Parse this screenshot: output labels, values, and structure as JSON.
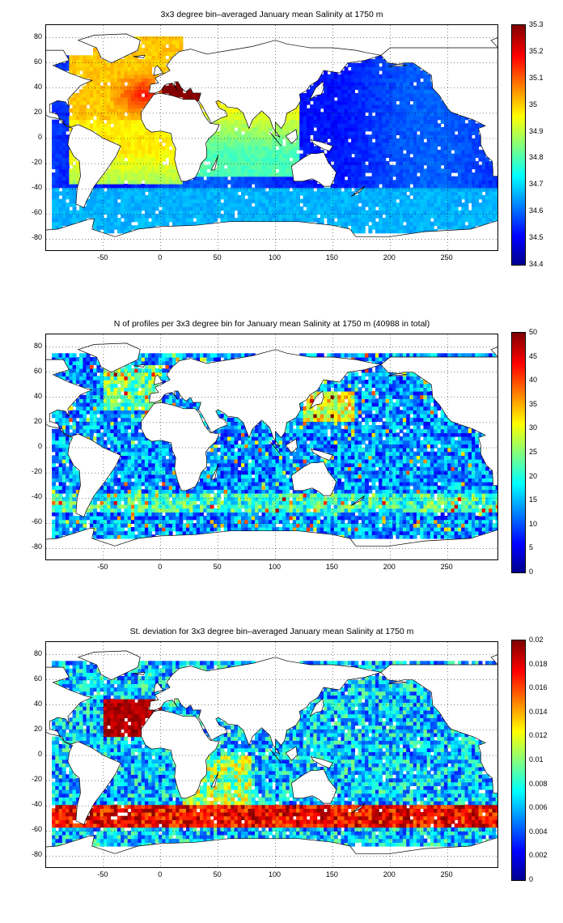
{
  "panels": [
    {
      "title": "3x3 degree bin–averaged January mean Salinity at 1750 m",
      "colorbar_ticks": [
        "35.3",
        "35.2",
        "35.1",
        "35",
        "34.9",
        "34.8",
        "34.7",
        "34.6",
        "34.5",
        "34.4"
      ],
      "colorbar_range": [
        34.4,
        35.3
      ]
    },
    {
      "title": "N of profiles per 3x3 degree bin for January mean Salinity at 1750 m (40988 in total)",
      "colorbar_ticks": [
        "50",
        "45",
        "40",
        "35",
        "30",
        "25",
        "20",
        "15",
        "10",
        "5",
        "0"
      ],
      "colorbar_range": [
        0,
        50
      ]
    },
    {
      "title": "St. deviation for 3x3 degree bin–averaged January mean Salinity at 1750 m",
      "colorbar_ticks": [
        "0.02",
        "0.018",
        "0.016",
        "0.014",
        "0.012",
        "0.01",
        "0.008",
        "0.006",
        "0.004",
        "0.002",
        "0"
      ],
      "colorbar_range": [
        0,
        0.02
      ]
    }
  ],
  "axes": {
    "x_ticks": [
      "-50",
      "0",
      "50",
      "100",
      "150",
      "200",
      "250"
    ],
    "y_ticks": [
      "80",
      "60",
      "40",
      "20",
      "0",
      "-20",
      "-40",
      "-60",
      "-80"
    ],
    "xlim": [
      -100,
      295
    ],
    "ylim": [
      -90,
      90
    ],
    "grid": "dotted"
  },
  "colormap": "jet"
}
